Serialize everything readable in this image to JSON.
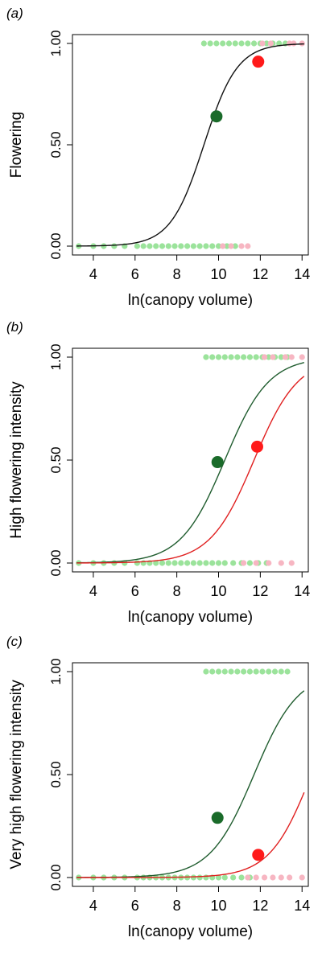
{
  "chart_data": [
    {
      "panel_label": "(a)",
      "type": "scatter",
      "xlabel": "ln(canopy volume)",
      "ylabel": "Flowering",
      "xlim": [
        3,
        14.3
      ],
      "ylim": [
        0,
        1
      ],
      "xticks": [
        "4",
        "6",
        "8",
        "10",
        "12",
        "14"
      ],
      "yticks": [
        "0.00",
        "0.50",
        "1.00"
      ],
      "grid": false,
      "legend": "none",
      "curves": [
        {
          "color": "#111111",
          "x0": 9.3,
          "k": 1.25,
          "xrange": [
            3.2,
            14.1
          ]
        }
      ],
      "means": [
        {
          "x": 9.9,
          "y": 0.64,
          "color": "#1a6b2a"
        },
        {
          "x": 11.9,
          "y": 0.91,
          "color": "#ff1a1a"
        }
      ],
      "strips": [
        {
          "y": 1,
          "color": "#9be39b",
          "x": [
            9.3,
            9.6,
            9.9,
            10.2,
            10.5,
            10.8,
            11.1,
            11.4,
            11.7,
            12.0,
            12.3,
            12.6,
            12.9,
            13.2
          ]
        },
        {
          "y": 1,
          "color": "#f7b6c2",
          "x": [
            12.1,
            12.5,
            13.4,
            13.6,
            14.0
          ]
        },
        {
          "y": 0,
          "color": "#9be39b",
          "x": [
            3.3,
            4.0,
            4.5,
            5.0,
            5.5,
            6.1,
            6.4,
            6.7,
            7.0,
            7.3,
            7.6,
            7.9,
            8.2,
            8.5,
            8.8,
            9.1,
            9.4,
            9.7,
            10.0,
            10.4,
            10.8
          ]
        },
        {
          "y": 0,
          "color": "#f7b6c2",
          "x": [
            10.2,
            10.6,
            11.1,
            11.4
          ]
        }
      ]
    },
    {
      "panel_label": "(b)",
      "type": "scatter",
      "xlabel": "ln(canopy volume)",
      "ylabel": "High flowering intensity",
      "xlim": [
        3,
        14.3
      ],
      "ylim": [
        0,
        1
      ],
      "xticks": [
        "4",
        "6",
        "8",
        "10",
        "12",
        "14"
      ],
      "yticks": [
        "0.00",
        "0.50",
        "1.00"
      ],
      "grid": false,
      "legend": "none",
      "curves": [
        {
          "color": "#1f5c2e",
          "x0": 10.3,
          "k": 0.95,
          "xrange": [
            3.2,
            14.1
          ]
        },
        {
          "color": "#e02020",
          "x0": 11.7,
          "k": 0.95,
          "xrange": [
            3.2,
            14.1
          ]
        }
      ],
      "means": [
        {
          "x": 9.95,
          "y": 0.49,
          "color": "#1a6b2a"
        },
        {
          "x": 11.85,
          "y": 0.565,
          "color": "#ff1a1a"
        }
      ],
      "strips": [
        {
          "y": 1,
          "color": "#9be39b",
          "x": [
            9.4,
            9.7,
            10.0,
            10.3,
            10.6,
            10.9,
            11.2,
            11.5,
            11.8,
            12.1,
            12.4,
            12.7,
            13.0,
            13.3
          ]
        },
        {
          "y": 1,
          "color": "#f7b6c2",
          "x": [
            12.2,
            12.6,
            13.2,
            13.5,
            14.0
          ]
        },
        {
          "y": 0,
          "color": "#9be39b",
          "x": [
            3.3,
            4.0,
            4.5,
            5.0,
            5.5,
            6.1,
            6.4,
            6.7,
            7.0,
            7.3,
            7.6,
            7.9,
            8.2,
            8.5,
            8.8,
            9.1,
            9.4,
            9.7,
            10.0,
            10.3,
            10.7,
            11.1,
            11.5,
            11.9,
            12.3
          ]
        },
        {
          "y": 0,
          "color": "#f7b6c2",
          "x": [
            11.2,
            11.8,
            12.4,
            13.0,
            13.5
          ]
        }
      ]
    },
    {
      "panel_label": "(c)",
      "type": "scatter",
      "xlabel": "ln(canopy volume)",
      "ylabel": "Very high flowering intensity",
      "xlim": [
        3,
        14.3
      ],
      "ylim": [
        0,
        1
      ],
      "xticks": [
        "4",
        "6",
        "8",
        "10",
        "12",
        "14"
      ],
      "yticks": [
        "0.00",
        "0.50",
        "1.00"
      ],
      "grid": false,
      "legend": "none",
      "curves": [
        {
          "color": "#1f5c2e",
          "x0": 11.7,
          "k": 0.95,
          "xrange": [
            3.2,
            14.1
          ]
        },
        {
          "color": "#e02020",
          "x0": 14.45,
          "k": 1.0,
          "xrange": [
            3.2,
            14.1
          ]
        }
      ],
      "means": [
        {
          "x": 9.95,
          "y": 0.29,
          "color": "#1a6b2a"
        },
        {
          "x": 11.9,
          "y": 0.11,
          "color": "#ff1a1a"
        }
      ],
      "strips": [
        {
          "y": 1,
          "color": "#9be39b",
          "x": [
            9.4,
            9.7,
            10.0,
            10.3,
            10.6,
            10.9,
            11.2,
            11.5,
            11.8,
            12.1,
            12.4,
            12.7,
            13.0,
            13.3
          ]
        },
        {
          "y": 0,
          "color": "#9be39b",
          "x": [
            3.3,
            4.0,
            4.5,
            5.0,
            5.5,
            6.1,
            6.4,
            6.7,
            7.0,
            7.3,
            7.6,
            7.9,
            8.2,
            8.5,
            8.8,
            9.1,
            9.4,
            9.7,
            10.0,
            10.3,
            10.7,
            11.1,
            11.5
          ]
        },
        {
          "y": 0,
          "color": "#f7b6c2",
          "x": [
            11.4,
            11.8,
            12.2,
            12.6,
            13.0,
            13.4,
            14.0
          ]
        }
      ]
    }
  ]
}
